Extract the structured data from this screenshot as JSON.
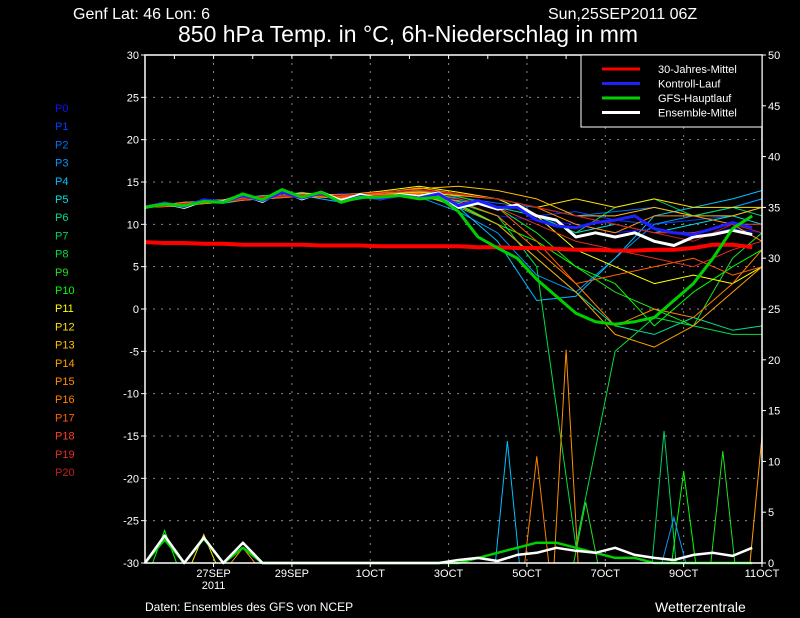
{
  "header": {
    "location": "Genf  Lat: 46 Lon: 6",
    "run": "Sun,25SEP2011 06Z"
  },
  "footer": {
    "source": "Daten: Ensembles des GFS von NCEP",
    "brand": "Wetterzentrale"
  },
  "chart_data": {
    "type": "line",
    "title": "850 hPa Temp. in °C, 6h-Niederschlag in mm",
    "x_unit": "hours since 25SEP2011 06Z",
    "xlim": [
      0,
      378
    ],
    "y_left": {
      "label": "°C",
      "lim": [
        -30,
        30
      ],
      "ticks": [
        -30,
        -25,
        -20,
        -15,
        -10,
        -5,
        0,
        5,
        10,
        15,
        20,
        25,
        30
      ]
    },
    "y_right": {
      "label": "mm",
      "lim": [
        0,
        50
      ],
      "ticks": [
        0,
        5,
        10,
        15,
        20,
        25,
        30,
        35,
        40,
        45,
        50
      ]
    },
    "x_ticks": [
      {
        "hours": 42,
        "label": "27SEP",
        "sub": "2011"
      },
      {
        "hours": 90,
        "label": "29SEP"
      },
      {
        "hours": 138,
        "label": "1OCT"
      },
      {
        "hours": 186,
        "label": "3OCT"
      },
      {
        "hours": 234,
        "label": "5OCT"
      },
      {
        "hours": 282,
        "label": "7OCT"
      },
      {
        "hours": 330,
        "label": "9OCT"
      },
      {
        "hours": 378,
        "label": "11OCT"
      }
    ],
    "grid": true,
    "legend_placement": "top-right",
    "legend": [
      {
        "name": "30-Jahres-Mittel",
        "color": "#ff0000"
      },
      {
        "name": "Kontroll-Lauf",
        "color": "#2020ff"
      },
      {
        "name": "GFS-Hauptlauf",
        "color": "#00d000"
      },
      {
        "name": "Ensemble-Mittel",
        "color": "#ffffff"
      }
    ],
    "x_12h": [
      0,
      12,
      24,
      36,
      48,
      60,
      72,
      84,
      96,
      108,
      120,
      132,
      144,
      156,
      168,
      180,
      192,
      204,
      216,
      228,
      240,
      252,
      264,
      276,
      288,
      300,
      312,
      324,
      336,
      348,
      360,
      372
    ],
    "main_series": [
      {
        "name": "30-Jahres-Mittel",
        "color": "#ff0000",
        "values": [
          7.9,
          7.8,
          7.8,
          7.7,
          7.7,
          7.6,
          7.6,
          7.6,
          7.6,
          7.5,
          7.5,
          7.5,
          7.4,
          7.4,
          7.4,
          7.4,
          7.4,
          7.3,
          7.3,
          7.2,
          7.2,
          7.1,
          7.0,
          7.0,
          6.9,
          6.9,
          7.0,
          7.0,
          7.2,
          7.6,
          7.6,
          7.3
        ]
      },
      {
        "name": "Kontroll-Lauf",
        "color": "#2020ff",
        "values": [
          12,
          12.5,
          12.1,
          12.9,
          12.6,
          13.4,
          12.8,
          13.8,
          13.1,
          13.7,
          12.6,
          13.3,
          13.0,
          13.4,
          13.1,
          13.6,
          12.2,
          12.8,
          12.0,
          12.0,
          10.5,
          9.8,
          9.6,
          10.2,
          10.5,
          11.0,
          9.5,
          9.0,
          8.8,
          9.5,
          10.2,
          9.6
        ]
      },
      {
        "name": "GFS-Hauptlauf",
        "color": "#00d000",
        "values": [
          12,
          12.4,
          12.2,
          12.7,
          12.6,
          13.6,
          12.9,
          14.1,
          13.2,
          13.8,
          12.6,
          13.2,
          13.2,
          13.4,
          13.0,
          13.2,
          11.5,
          8.5,
          7.2,
          6.0,
          3.5,
          1.5,
          -0.5,
          -1.5,
          -1.8,
          -1.5,
          -1.0,
          1.0,
          3.0,
          6.0,
          9.5,
          11.0
        ]
      },
      {
        "name": "Ensemble-Mittel",
        "color": "#ffffff",
        "values": [
          12,
          12.5,
          12.0,
          12.8,
          12.7,
          13.5,
          12.7,
          14.0,
          13.0,
          13.8,
          12.8,
          13.5,
          13.0,
          13.5,
          13.3,
          13.7,
          12.0,
          12.5,
          11.8,
          12.3,
          11.0,
          10.5,
          8.5,
          9.0,
          8.5,
          9.0,
          8.0,
          7.5,
          8.5,
          8.8,
          9.3,
          8.8
        ]
      }
    ],
    "main_precip": [
      {
        "name": "GFS-Hauptlauf",
        "color": "#00d000",
        "values": [
          0,
          2.3,
          0,
          2.4,
          0,
          1.5,
          0,
          0,
          0,
          0,
          0,
          0,
          0,
          0,
          0,
          0,
          0,
          0.5,
          1,
          1.5,
          2,
          2,
          1.5,
          1,
          0.5,
          0.5,
          0,
          0,
          0,
          0,
          0,
          0
        ]
      },
      {
        "name": "Ensemble-Mittel",
        "color": "#ffffff",
        "values": [
          0,
          2.7,
          0,
          2.5,
          0,
          2.0,
          0,
          0,
          0,
          0,
          0,
          0,
          0,
          0,
          0,
          0,
          0.3,
          0.5,
          0.2,
          0.8,
          1.0,
          1.5,
          1.2,
          1.0,
          1.5,
          0.8,
          0.5,
          0.3,
          0.8,
          1.0,
          0.7,
          1.5
        ]
      }
    ],
    "x_daily": [
      0,
      24,
      48,
      72,
      96,
      120,
      144,
      168,
      192,
      216,
      240,
      264,
      288,
      312,
      336,
      360,
      378
    ],
    "members": [
      {
        "name": "P0",
        "color": "#1010ff",
        "values": [
          12,
          12.4,
          12.8,
          13.2,
          13.6,
          13.4,
          13.3,
          13.8,
          12.6,
          11,
          10.5,
          10,
          9,
          9.5,
          8.5,
          9.5,
          9
        ]
      },
      {
        "name": "P1",
        "color": "#0040ff",
        "values": [
          12,
          12.6,
          12.9,
          13.4,
          13.2,
          13.6,
          13.6,
          14.0,
          13.0,
          12,
          11,
          11.5,
          10.5,
          10,
          10.5,
          11,
          12
        ]
      },
      {
        "name": "P2",
        "color": "#0070ff",
        "values": [
          12,
          12.3,
          12.6,
          13.1,
          13.8,
          13.0,
          13.2,
          13.5,
          13.2,
          12.5,
          12,
          11,
          11.5,
          12,
          11,
          12,
          13
        ]
      },
      {
        "name": "P3",
        "color": "#0098ff",
        "values": [
          12,
          12.5,
          12.7,
          13.0,
          13.5,
          13.2,
          13.6,
          13.2,
          11.5,
          9,
          4,
          2,
          6,
          10,
          11,
          12,
          13
        ]
      },
      {
        "name": "P4",
        "color": "#00c0ff",
        "values": [
          12,
          12.2,
          12.9,
          13.3,
          13.4,
          12.6,
          13.4,
          13.7,
          12.0,
          8,
          1,
          1.5,
          6,
          11,
          12,
          13,
          14
        ]
      },
      {
        "name": "P5",
        "color": "#00e0e0",
        "values": [
          12,
          12.6,
          12.5,
          13.2,
          13.7,
          13.0,
          13.8,
          13.4,
          12.8,
          12,
          11,
          9,
          10,
          9,
          10,
          11,
          10
        ]
      },
      {
        "name": "P6",
        "color": "#00e090",
        "values": [
          12,
          12.4,
          12.8,
          13.0,
          13.3,
          13.4,
          13.0,
          13.6,
          12.0,
          10,
          6,
          2,
          -2,
          -3,
          -1,
          -2.5,
          -2
        ]
      },
      {
        "name": "P7",
        "color": "#00d060",
        "values": [
          12,
          12.3,
          12.7,
          13.4,
          13.5,
          13.2,
          13.5,
          14.0,
          13.0,
          12,
          11,
          9,
          12,
          13,
          11,
          12,
          11
        ]
      },
      {
        "name": "P8",
        "color": "#00e040",
        "values": [
          12,
          12.5,
          12.6,
          13.1,
          13.6,
          13.3,
          13.2,
          13.5,
          12.5,
          11,
          5,
          -28,
          -5,
          -1,
          -2,
          -3,
          -3
        ]
      },
      {
        "name": "P9",
        "color": "#20e020",
        "values": [
          12,
          12.4,
          12.9,
          13.3,
          13.4,
          13.1,
          13.7,
          13.9,
          13.3,
          12,
          9,
          5,
          2,
          0,
          -2,
          6,
          9
        ]
      },
      {
        "name": "P10",
        "color": "#00ff00",
        "values": [
          12,
          12.2,
          12.8,
          13.2,
          13.5,
          13.5,
          13.4,
          13.6,
          12.4,
          10,
          8,
          5,
          3,
          -2,
          2,
          5,
          7
        ]
      },
      {
        "name": "P11",
        "color": "#ffff00",
        "values": [
          12,
          12.5,
          12.7,
          13.1,
          13.7,
          13.4,
          13.9,
          14.5,
          13.8,
          13,
          11,
          7,
          5,
          3,
          4,
          3,
          5
        ]
      },
      {
        "name": "P12",
        "color": "#ffe000",
        "values": [
          12,
          12.3,
          12.6,
          13.3,
          13.4,
          13.2,
          13.6,
          13.8,
          13.4,
          13,
          12,
          13,
          12,
          13,
          12,
          12,
          12
        ]
      },
      {
        "name": "P13",
        "color": "#ffc000",
        "values": [
          12,
          12.4,
          12.9,
          13.2,
          13.6,
          13.5,
          13.8,
          14.2,
          14.5,
          14,
          13,
          11,
          11,
          12,
          11,
          11,
          12
        ]
      },
      {
        "name": "P14",
        "color": "#ffa000",
        "values": [
          12,
          12.2,
          12.7,
          13.0,
          13.3,
          13.1,
          13.3,
          13.4,
          12.2,
          10,
          6,
          2,
          -3,
          -4.5,
          -2,
          2,
          5
        ]
      },
      {
        "name": "P15",
        "color": "#ff9000",
        "values": [
          12,
          12.6,
          12.8,
          13.3,
          13.5,
          13.4,
          13.7,
          14.3,
          13.6,
          13,
          12,
          10,
          9,
          11,
          11,
          10,
          8
        ]
      },
      {
        "name": "P16",
        "color": "#ff8000",
        "values": [
          12,
          12.3,
          12.6,
          13.1,
          13.4,
          13.2,
          13.5,
          13.6,
          12.7,
          11,
          7,
          3,
          -2,
          0,
          -1,
          3,
          7
        ]
      },
      {
        "name": "P17",
        "color": "#ff6000",
        "values": [
          12,
          12.5,
          12.8,
          13.2,
          13.6,
          13.3,
          13.4,
          13.7,
          13.0,
          12,
          8,
          3,
          4,
          5,
          6,
          4,
          5
        ]
      },
      {
        "name": "P18",
        "color": "#ff4020",
        "values": [
          12,
          12.4,
          12.7,
          13.1,
          13.3,
          13.5,
          13.6,
          14.0,
          13.5,
          13,
          12,
          11,
          10,
          9,
          9,
          10,
          10
        ]
      },
      {
        "name": "P19",
        "color": "#e03020",
        "values": [
          12,
          12.3,
          12.9,
          13.3,
          13.5,
          13.2,
          13.4,
          13.5,
          13.0,
          12,
          10,
          8,
          7,
          6,
          5,
          7,
          8
        ]
      },
      {
        "name": "P20",
        "color": "#c02020",
        "values": [
          12,
          12.5,
          12.7,
          13.2,
          13.4,
          13.4,
          13.8,
          14.1,
          13.6,
          13,
          12,
          11,
          10,
          9,
          8,
          10,
          9
        ]
      }
    ],
    "member_precip_peaks": [
      {
        "member": "P10",
        "hours": 12,
        "mm": 3.2
      },
      {
        "member": "P12",
        "hours": 36,
        "mm": 2.8
      },
      {
        "member": "P15",
        "hours": 60,
        "mm": 1.5
      },
      {
        "member": "P4",
        "hours": 222,
        "mm": 12
      },
      {
        "member": "P16",
        "hours": 240,
        "mm": 10.5
      },
      {
        "member": "P15",
        "hours": 258,
        "mm": 21
      },
      {
        "member": "P9",
        "hours": 270,
        "mm": 6
      },
      {
        "member": "P7",
        "hours": 318,
        "mm": 13
      },
      {
        "member": "P10",
        "hours": 330,
        "mm": 9
      },
      {
        "member": "P3",
        "hours": 324,
        "mm": 4.5
      },
      {
        "member": "P9",
        "hours": 354,
        "mm": 11
      },
      {
        "member": "P14",
        "hours": 378,
        "mm": 12.5
      }
    ]
  }
}
